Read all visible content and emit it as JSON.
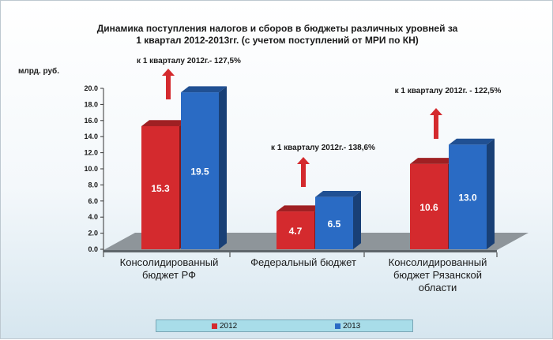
{
  "title_line1": "Динамика поступления налогов и сборов в бюджеты различных уровней за",
  "title_line2": "1 квартал 2012-2013гг.  (с  учетом  поступлений от  МРИ по КН)",
  "chart_data": {
    "type": "bar",
    "title": "Динамика поступления налогов и сборов в бюджеты различных уровней за 1 квартал 2012-2013гг.  (с  учетом  поступлений от  МРИ по КН)",
    "ylabel": "млрд. руб.",
    "xlabel": "",
    "ylim": [
      0,
      20
    ],
    "yticks": [
      "0.0",
      "2.0",
      "4.0",
      "6.0",
      "8.0",
      "10.0",
      "12.0",
      "14.0",
      "16.0",
      "18.0",
      "20.0"
    ],
    "categories": [
      [
        "Консолидированный",
        "бюджет РФ"
      ],
      [
        "Федеральный бюджет"
      ],
      [
        "Консолидированный",
        "бюджет Рязанской",
        "области"
      ]
    ],
    "series": [
      {
        "name": "2012",
        "values": [
          15.3,
          4.7,
          10.6
        ],
        "labels": [
          "15.3",
          "4.7",
          "10.6"
        ],
        "color": "#d42a2e"
      },
      {
        "name": "2013",
        "values": [
          19.5,
          6.5,
          13.0
        ],
        "labels": [
          "19.5",
          "6.5",
          "13.0"
        ],
        "color": "#2a6bc4"
      }
    ],
    "annotations": [
      "к 1 кварталу 2012г.- 127,5%",
      "к  1 кварталу 2012г.- 138,6%",
      "к  1 кварталу 2012г. - 122,5%"
    ],
    "legend_position": "bottom",
    "grid": false,
    "arrow_color": "#d42a2e"
  }
}
